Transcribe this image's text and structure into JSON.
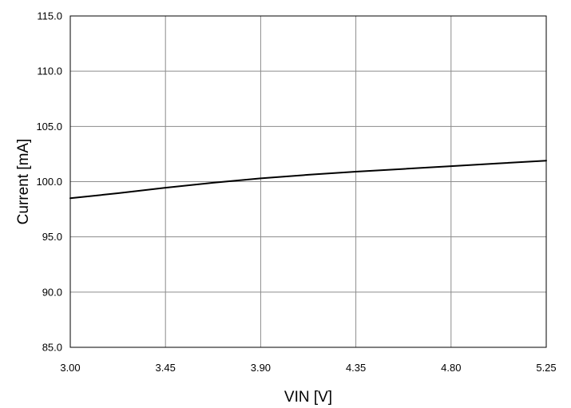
{
  "chart_data": {
    "type": "line",
    "title": "",
    "xlabel": "VIN [V]",
    "ylabel": "Current [mA]",
    "xlim": [
      3.0,
      5.25
    ],
    "ylim": [
      85.0,
      115.0
    ],
    "x_ticks": [
      "3.00",
      "3.45",
      "3.90",
      "4.35",
      "4.80",
      "5.25"
    ],
    "y_ticks": [
      "85.0",
      "90.0",
      "95.0",
      "100.0",
      "105.0",
      "110.0",
      "115.0"
    ],
    "grid": true,
    "legend": "none",
    "series": [
      {
        "color": "#000000",
        "x": [
          3.0,
          3.225,
          3.45,
          3.675,
          3.9,
          4.125,
          4.35,
          4.575,
          4.8,
          5.025,
          5.25
        ],
        "y": [
          98.5,
          98.95,
          99.45,
          99.9,
          100.3,
          100.62,
          100.9,
          101.15,
          101.4,
          101.65,
          101.9
        ]
      }
    ]
  }
}
